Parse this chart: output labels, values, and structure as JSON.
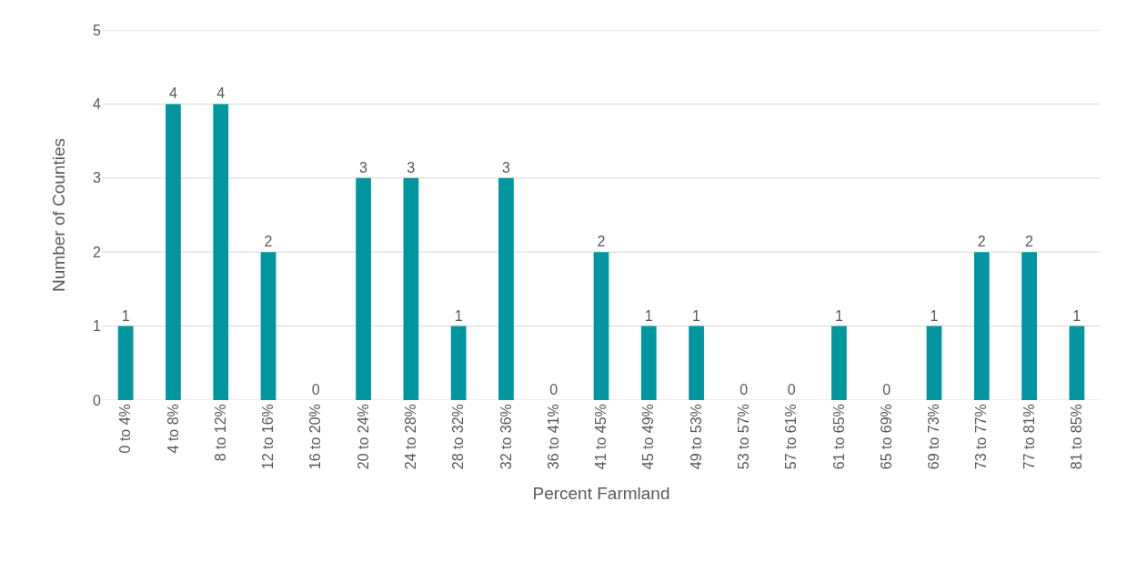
{
  "chart_data": {
    "type": "bar",
    "xlabel": "Percent Farmland",
    "ylabel": "Number of Counties",
    "categories": [
      "0 to 4%",
      "4 to 8%",
      "8 to 12%",
      "12 to 16%",
      "16 to 20%",
      "20 to 24%",
      "24 to 28%",
      "28 to 32%",
      "32 to 36%",
      "36 to 41%",
      "41 to 45%",
      "45 to 49%",
      "49 to 53%",
      "53 to 57%",
      "57 to 61%",
      "61 to 65%",
      "65 to 69%",
      "69 to 73%",
      "73 to 77%",
      "77 to 81%",
      "81 to 85%"
    ],
    "values": [
      1,
      4,
      4,
      2,
      0,
      3,
      3,
      1,
      3,
      0,
      2,
      1,
      1,
      0,
      0,
      1,
      0,
      1,
      2,
      2,
      1
    ],
    "color": "#0096a0",
    "ylim": [
      0,
      5
    ],
    "yticks": [
      0,
      1,
      2,
      3,
      4,
      5
    ],
    "grid": "y",
    "data_labels": true
  }
}
